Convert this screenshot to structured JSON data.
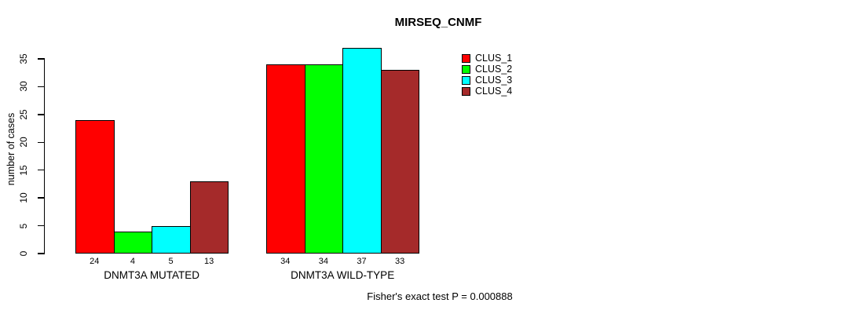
{
  "title": "MIRSEQ_CNMF",
  "subtitle": "Fisher's exact test P = 0.000888",
  "y_axis": {
    "label": "number of cases",
    "ticks": [
      0,
      5,
      10,
      15,
      20,
      25,
      30,
      35
    ]
  },
  "chart_data": {
    "type": "bar",
    "title": "MIRSEQ_CNMF",
    "xlabel": "",
    "ylabel": "number of cases",
    "ylim": [
      0,
      35
    ],
    "grid": false,
    "legend_position": "top-right",
    "annotation": "Fisher's exact test P = 0.000888",
    "categories": [
      "DNMT3A MUTATED",
      "DNMT3A WILD-TYPE"
    ],
    "series": [
      {
        "name": "CLUS_1",
        "color": "#FF0000",
        "values": [
          24,
          34
        ]
      },
      {
        "name": "CLUS_2",
        "color": "#00FF00",
        "values": [
          4,
          34
        ]
      },
      {
        "name": "CLUS_3",
        "color": "#00FFFF",
        "values": [
          5,
          37
        ]
      },
      {
        "name": "CLUS_4",
        "color": "#A52A2A",
        "values": [
          13,
          33
        ]
      }
    ],
    "value_labels_shown": true
  },
  "colors": {
    "bar_border": "#000000",
    "axis": "#000000",
    "background": "#FFFFFF"
  }
}
